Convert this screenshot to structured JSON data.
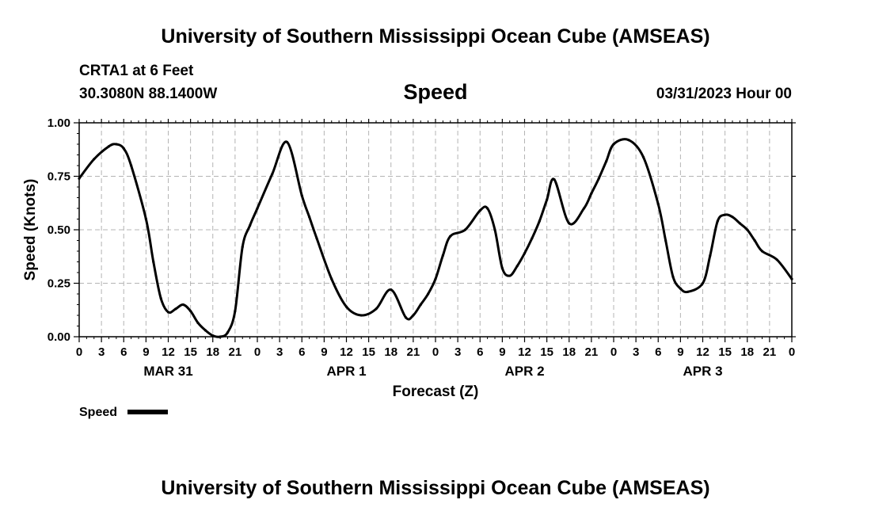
{
  "header": {
    "title": "University of Southern Mississippi Ocean Cube (AMSEAS)",
    "station": "CRTA1 at 6 Feet",
    "coords": "30.3080N  88.1400W",
    "timestamp": "03/31/2023 Hour 00"
  },
  "footer": {
    "title": "University of Southern Mississippi Ocean Cube (AMSEAS)"
  },
  "colors": {
    "line": "#000000",
    "grid": "#b4b4b4",
    "background": "#ffffff"
  },
  "chart_data": {
    "type": "line",
    "title": "Speed",
    "xlabel": "Forecast (Z)",
    "ylabel": "Speed (Knots)",
    "xlim": [
      0,
      96
    ],
    "ylim": [
      0,
      1
    ],
    "grid": true,
    "legend": {
      "label": "Speed",
      "placement": "bottom-left"
    },
    "x_tick_labels": [
      "0",
      "3",
      "6",
      "9",
      "12",
      "15",
      "18",
      "21",
      "0",
      "3",
      "6",
      "9",
      "12",
      "15",
      "18",
      "21",
      "0",
      "3",
      "6",
      "9",
      "12",
      "15",
      "18",
      "21",
      "0",
      "3",
      "6",
      "9",
      "12",
      "15",
      "18",
      "21",
      "0"
    ],
    "y_ticks": [
      0,
      0.25,
      0.5,
      0.75,
      1.0
    ],
    "y_tick_labels": [
      "0.00",
      "0.25",
      "0.50",
      "0.75",
      "1.00"
    ],
    "day_labels": [
      {
        "label": "MAR 31",
        "hour": 12
      },
      {
        "label": "APR 1",
        "hour": 36
      },
      {
        "label": "APR 2",
        "hour": 60
      },
      {
        "label": "APR 3",
        "hour": 84
      }
    ],
    "series": [
      {
        "name": "Speed",
        "x": [
          0,
          2,
          4,
          5,
          6,
          7,
          9,
          10,
          11,
          12,
          13,
          14,
          15,
          16,
          17,
          18,
          19,
          20,
          21,
          22,
          23,
          24,
          26,
          28,
          30,
          31,
          32,
          34,
          36,
          38,
          40,
          42,
          44,
          45,
          46,
          47,
          48,
          49,
          50,
          52,
          54,
          55,
          56,
          57,
          58,
          59,
          60,
          61,
          62,
          63,
          64,
          66,
          68,
          69,
          70,
          71,
          72,
          74,
          76,
          78,
          79,
          80,
          81,
          82,
          84,
          85,
          86,
          87,
          88,
          89,
          90,
          91,
          92,
          94,
          96
        ],
        "values": [
          0.74,
          0.83,
          0.89,
          0.9,
          0.88,
          0.8,
          0.55,
          0.35,
          0.18,
          0.115,
          0.13,
          0.15,
          0.12,
          0.065,
          0.03,
          0.005,
          0.0,
          0.02,
          0.12,
          0.42,
          0.52,
          0.6,
          0.76,
          0.91,
          0.66,
          0.56,
          0.46,
          0.27,
          0.14,
          0.1,
          0.13,
          0.22,
          0.09,
          0.1,
          0.15,
          0.2,
          0.27,
          0.38,
          0.47,
          0.5,
          0.59,
          0.6,
          0.5,
          0.32,
          0.285,
          0.33,
          0.39,
          0.46,
          0.54,
          0.64,
          0.735,
          0.53,
          0.6,
          0.67,
          0.74,
          0.82,
          0.9,
          0.92,
          0.84,
          0.62,
          0.45,
          0.28,
          0.225,
          0.21,
          0.25,
          0.38,
          0.54,
          0.57,
          0.56,
          0.53,
          0.5,
          0.45,
          0.4,
          0.36,
          0.27
        ]
      }
    ]
  }
}
